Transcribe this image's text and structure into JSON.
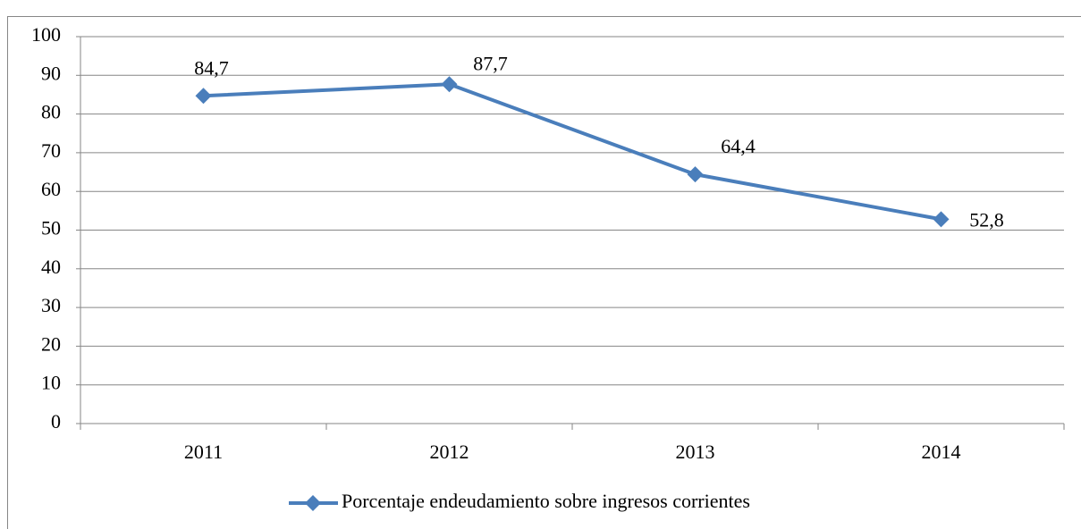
{
  "chart_data": {
    "type": "line",
    "categories": [
      "2011",
      "2012",
      "2013",
      "2014"
    ],
    "series": [
      {
        "name": "Porcentaje endeudamiento sobre ingresos corrientes",
        "color": "#4a7ebb",
        "values": [
          84.7,
          87.7,
          64.4,
          52.8
        ],
        "value_labels": [
          "84,7",
          "87,7",
          "64,4",
          "52,8"
        ]
      }
    ],
    "ylim": [
      0,
      100
    ],
    "yticks": [
      0,
      10,
      20,
      30,
      40,
      50,
      60,
      70,
      80,
      90,
      100
    ],
    "grid": true,
    "legend": "bottom"
  }
}
